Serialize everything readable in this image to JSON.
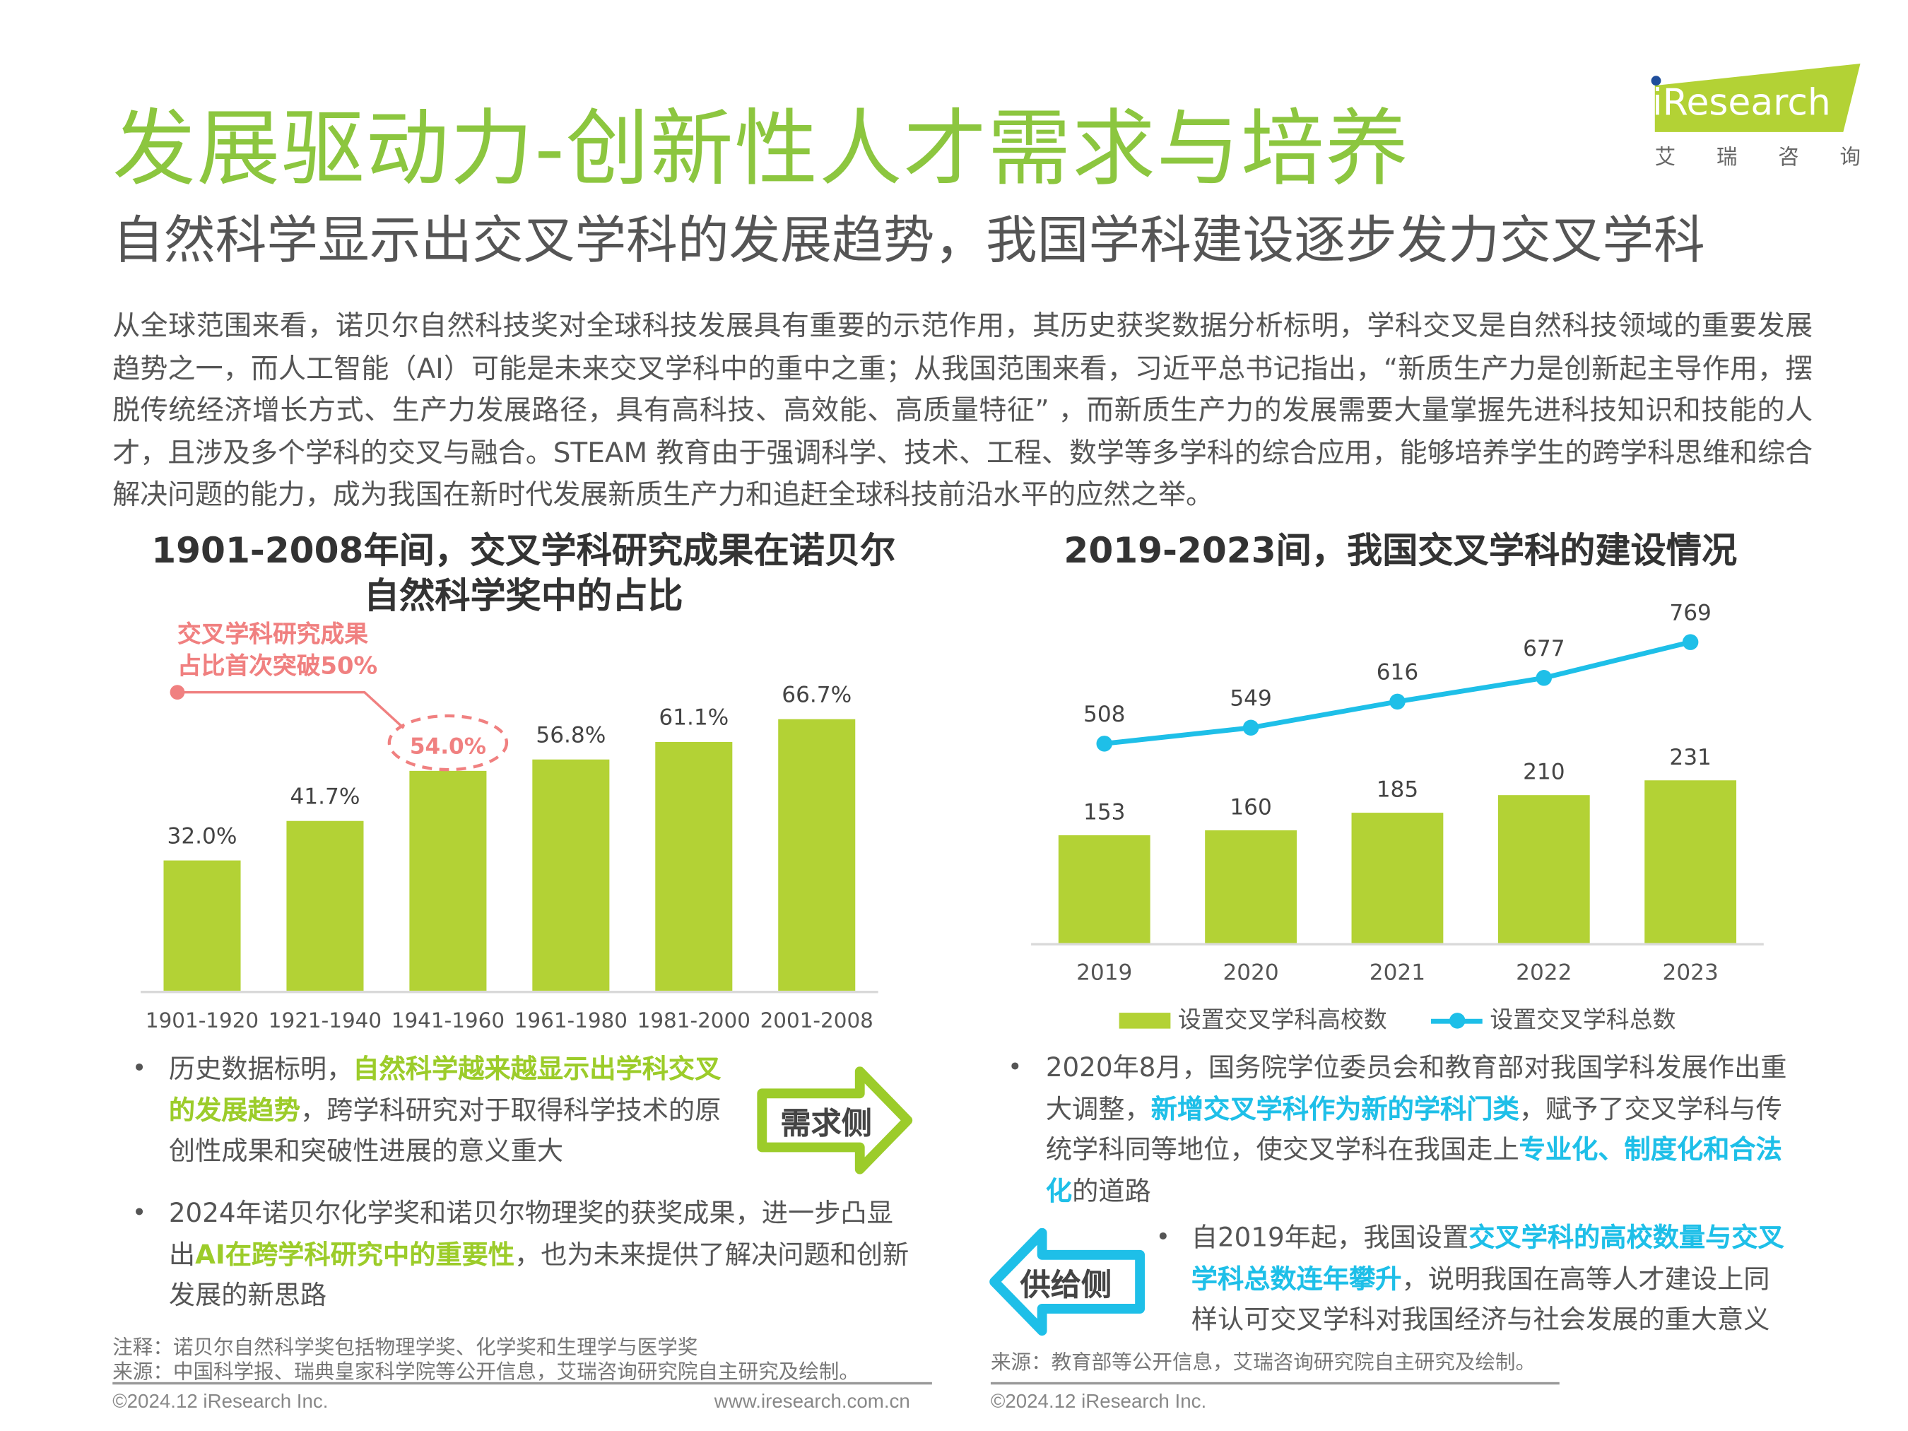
{
  "header": {
    "title": "发展驱动力-创新性人才需求与培养",
    "subtitle": "自然科学显示出交叉学科的发展趋势，我国学科建设逐步发力交叉学科",
    "logo": {
      "brand": "iResearch",
      "chinese": "艾 瑞 咨 询",
      "color": "#b3d235"
    }
  },
  "intro": "从全球范围来看，诺贝尔自然科技奖对全球科技发展具有重要的示范作用，其历史获奖数据分析标明，学科交叉是自然科技领域的重要发展趋势之一，而人工智能（AI）可能是未来交叉学科中的重中之重；从我国范围来看，习近平总书记指出，“新质生产力是创新起主导作用，摆脱传统经济增长方式、生产力发展路径，具有高科技、高效能、高质量特征” ，而新质生产力的发展需要大量掌握先进科技知识和技能的人才，且涉及多个学科的交叉与融合。STEAM 教育由于强调科学、技术、工程、数学等多学科的综合应用，能够培养学生的跨学科思维和综合解决问题的能力，成为我国在新时代发展新质生产力和追赶全球科技前沿水平的应然之举。",
  "colors": {
    "green": "#8cc63f",
    "bar": "#b3d235",
    "blue": "#1ebfe8",
    "annotation": "#f08080"
  },
  "chart_data": [
    {
      "type": "bar",
      "title": "1901-2008年间，交叉学科研究成果在诺贝尔自然科学奖中的占比",
      "title_lines": [
        "1901-2008年间，交叉学科研究成果在诺贝尔",
        "自然科学奖中的占比"
      ],
      "categories": [
        "1901-1920",
        "1921-1940",
        "1941-1960",
        "1961-1980",
        "1981-2000",
        "2001-2008"
      ],
      "values": [
        32.0,
        41.7,
        54.0,
        56.8,
        61.1,
        66.7
      ],
      "labels": [
        "32.0%",
        "41.7%",
        "54.0%",
        "56.8%",
        "61.1%",
        "66.7%"
      ],
      "unit": "%",
      "ylim": [
        0,
        70
      ],
      "grid": false,
      "annotation": {
        "lines": [
          "交叉学科研究成果",
          "占比首次突破50%"
        ],
        "target": "1941-1960"
      }
    },
    {
      "type": "bar+line",
      "title": "2019-2023间，我国交叉学科的建设情况",
      "categories": [
        "2019",
        "2020",
        "2021",
        "2022",
        "2023"
      ],
      "series": [
        {
          "name": "设置交叉学科高校数",
          "type": "bar",
          "values": [
            153,
            160,
            185,
            210,
            231
          ]
        },
        {
          "name": "设置交叉学科总数",
          "type": "line",
          "values": [
            508,
            549,
            616,
            677,
            769
          ]
        }
      ],
      "legend": "bottom",
      "grid": false
    }
  ],
  "left_bullets": {
    "b1": {
      "t1": "历史数据标明，",
      "h1": "自然科学越来越显示出学科交叉的发展趋势",
      "t2": "，跨学科研究对于取得科学技术的原创性成果和突破性进展的意义重大"
    },
    "b2": {
      "t1": "2024年诺贝尔化学奖和诺贝尔物理奖的获奖成果，进一步凸显出",
      "h1": "AI在跨学科研究中的重要性",
      "t2": "，也为未来提供了解决问题和创新发展的新思路"
    },
    "arrow_label": "需求侧"
  },
  "right_bullets": {
    "b1": {
      "t1": "2020年8月，国务院学位委员会和教育部对我国学科发展作出重大调整，",
      "h1": "新增交叉学科作为新的学科门类",
      "t2": "，赋予了交叉学科与传统学科同等地位，使交叉学科在我国走上",
      "h2": "专业化、制度化和合法化",
      "t3": "的道路"
    },
    "b2": {
      "t1": "自2019年起，我国设置",
      "h1": "交叉学科的高校数量与交叉学科总数连年攀升",
      "t2": "，说明我国在高等人才建设上同样认可交叉学科对我国经济与社会发展的重大意义"
    },
    "arrow_label": "供给侧"
  },
  "footer_left": {
    "note": "注释：诺贝尔自然科学奖包括物理学奖、化学奖和生理学与医学奖",
    "source": "来源：中国科学报、瑞典皇家科学院等公开信息，艾瑞咨询研究院自主研究及绘制。",
    "copyright": "©2024.12 iResearch Inc.",
    "website": "www.iresearch.com.cn"
  },
  "footer_right": {
    "source": "来源：教育部等公开信息，艾瑞咨询研究院自主研究及绘制。",
    "copyright": "©2024.12 iResearch Inc."
  }
}
